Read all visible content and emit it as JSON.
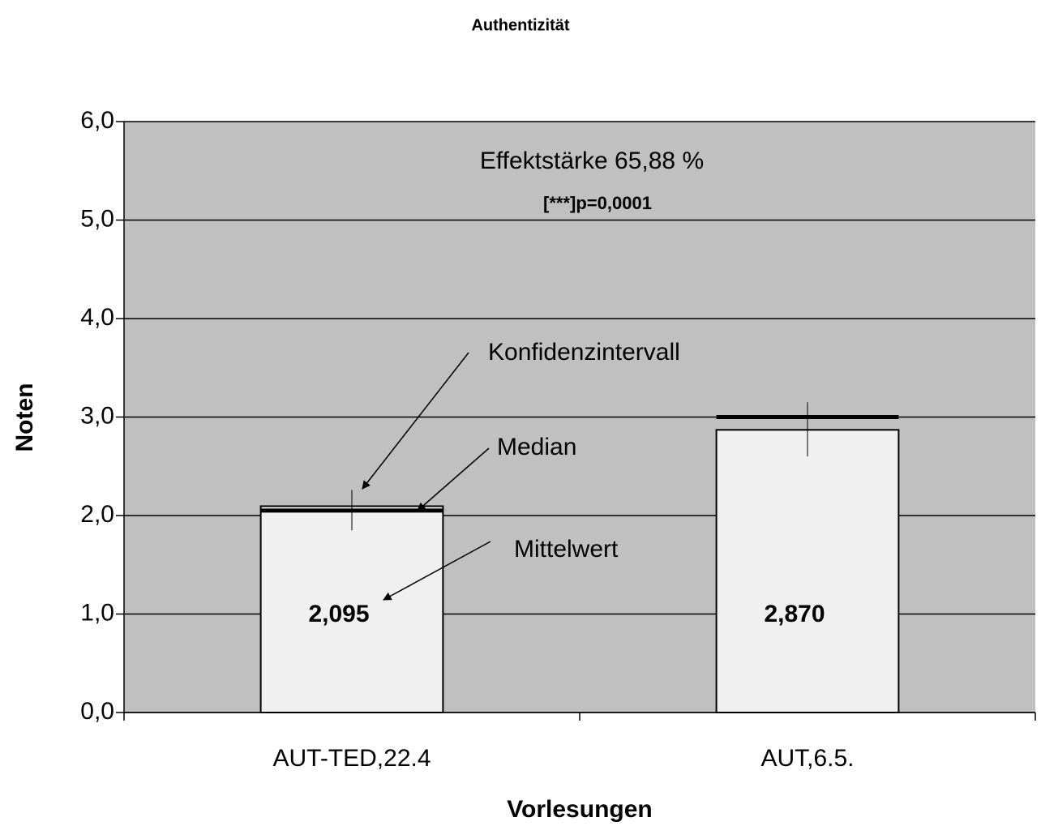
{
  "chart_data": {
    "type": "bar",
    "title": "Authentizität",
    "x_label": "Vorlesungen",
    "y_label": "Noten",
    "categories": [
      "AUT-TED,22.4",
      "AUT,6.5."
    ],
    "values": [
      2.095,
      2.87
    ],
    "value_labels": [
      "2,095",
      "2,870"
    ],
    "medians": [
      2.05,
      3.0
    ],
    "ci_low": [
      1.85,
      2.6
    ],
    "ci_high": [
      2.26,
      3.15
    ],
    "color": "#f0f0f0",
    "plot_background": "#c0c0c0",
    "ylim": [
      0,
      6
    ],
    "yticks": [
      {
        "value": 0,
        "label": "0,0"
      },
      {
        "value": 1,
        "label": "1,0"
      },
      {
        "value": 2,
        "label": "2,0"
      },
      {
        "value": 3,
        "label": "3,0"
      },
      {
        "value": 4,
        "label": "4,0"
      },
      {
        "value": 5,
        "label": "5,0"
      },
      {
        "value": 6,
        "label": "6,0"
      }
    ],
    "grid": true,
    "annotations": {
      "effect": "Effektstärke 65,88 %",
      "p_value": "[***]p=0,0001",
      "ci": "Konfidenzintervall",
      "median": "Median",
      "mean": "Mittelwert"
    }
  }
}
